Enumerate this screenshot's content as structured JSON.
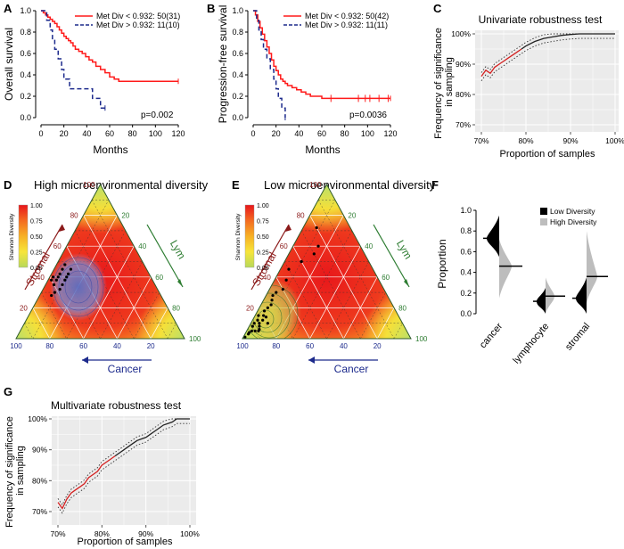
{
  "panels": {
    "A": {
      "letter": "A",
      "xlabel": "Months",
      "ylabel": "Overall survival",
      "pvalue": "p=0.002",
      "legend": [
        "Met Div < 0.932: 50(31)",
        "Met Div > 0.932: 11(10)"
      ],
      "xticks": [
        "0",
        "20",
        "40",
        "60",
        "80",
        "100",
        "120"
      ],
      "yticks": [
        "0.0",
        "0.2",
        "0.4",
        "0.6",
        "0.8",
        "1.0"
      ]
    },
    "B": {
      "letter": "B",
      "xlabel": "Months",
      "ylabel": "Progression-free survival",
      "pvalue": "p=0.0036",
      "legend": [
        "Met Div < 0.932: 50(42)",
        "Met Div > 0.932: 11(11)"
      ],
      "xticks": [
        "0",
        "20",
        "40",
        "60",
        "80",
        "100",
        "120"
      ],
      "yticks": [
        "0.0",
        "0.2",
        "0.4",
        "0.6",
        "0.8",
        "1.0"
      ]
    },
    "C": {
      "letter": "C",
      "title": "Univariate robustness test",
      "xlabel": "Proportion of samples",
      "ylabel": [
        "Frequency of significance",
        "in sampling"
      ],
      "xticks": [
        "70%",
        "80%",
        "90%",
        "100%"
      ],
      "yticks": [
        "70%",
        "80%",
        "90%",
        "100%"
      ]
    },
    "D": {
      "letter": "D",
      "title": "High microenvironmental diversity",
      "legend_title": "Shannon Diversity",
      "legend_ticks": [
        "1.00",
        "0.75",
        "0.50",
        "0.25",
        "0.00"
      ],
      "axis_stromal": "Stromal",
      "axis_lym": "Lym",
      "axis_cancer": "Cancer",
      "left_ticks": [
        "20",
        "40",
        "60",
        "80",
        "100"
      ],
      "right_ticks": [
        "20",
        "40",
        "60",
        "80",
        "100"
      ],
      "bottom_ticks": [
        "100",
        "80",
        "60",
        "40",
        "20"
      ]
    },
    "E": {
      "letter": "E",
      "title": "Low microenvironmental diversity",
      "legend_title": "Shannon Diversity",
      "legend_ticks": [
        "1.00",
        "0.75",
        "0.50",
        "0.25",
        "0.00"
      ],
      "axis_stromal": "Stromal",
      "axis_lym": "Lym",
      "axis_cancer": "Cancer",
      "left_ticks": [
        "20",
        "40",
        "60",
        "80",
        "100"
      ],
      "right_ticks": [
        "20",
        "40",
        "60",
        "80",
        "100"
      ],
      "bottom_ticks": [
        "100",
        "80",
        "60",
        "40",
        "20"
      ]
    },
    "F": {
      "letter": "F",
      "ylabel": "Proportion",
      "legend": [
        "Low  Diversity",
        "High Diversity"
      ],
      "categories": [
        "cancer",
        "lymphocyte",
        "stromal"
      ],
      "yticks": [
        "0.0",
        "0.2",
        "0.4",
        "0.6",
        "0.8",
        "1.0"
      ]
    },
    "G": {
      "letter": "G",
      "title": "Multivariate robustness test",
      "xlabel": "Proportion of samples",
      "ylabel": [
        "Frequency of significance",
        "in sampling"
      ],
      "xticks": [
        "70%",
        "80%",
        "90%",
        "100%"
      ],
      "yticks": [
        "70%",
        "80%",
        "90%",
        "100%"
      ]
    }
  },
  "colors": {
    "red": "#ff1a1a",
    "navy": "#1c2a8c",
    "dark_red": "#8b1a1a",
    "green": "#2e7d32",
    "grey_panel": "#ebebeb",
    "curve": "#222222"
  },
  "chart_data": [
    {
      "type": "line",
      "panel": "A",
      "xlabel": "Months",
      "ylabel": "Overall survival",
      "xlim": [
        0,
        120
      ],
      "ylim": [
        0,
        1
      ],
      "series": [
        {
          "name": "Met Div < 0.932: 50(31)",
          "x": [
            0,
            2,
            4,
            6,
            8,
            10,
            12,
            14,
            16,
            18,
            20,
            22,
            24,
            26,
            28,
            30,
            33,
            36,
            39,
            42,
            45,
            48,
            52,
            56,
            60,
            64,
            68,
            120
          ],
          "y": [
            1.0,
            0.98,
            0.96,
            0.94,
            0.92,
            0.9,
            0.88,
            0.85,
            0.82,
            0.79,
            0.76,
            0.74,
            0.72,
            0.7,
            0.67,
            0.64,
            0.62,
            0.6,
            0.57,
            0.54,
            0.52,
            0.48,
            0.45,
            0.42,
            0.38,
            0.36,
            0.34,
            0.34
          ]
        },
        {
          "name": "Met Div > 0.932: 11(10)",
          "x": [
            0,
            5,
            8,
            10,
            12,
            15,
            18,
            20,
            25,
            35,
            45,
            52,
            56
          ],
          "y": [
            1.0,
            0.91,
            0.82,
            0.73,
            0.64,
            0.55,
            0.45,
            0.36,
            0.27,
            0.27,
            0.18,
            0.09,
            0.09
          ]
        }
      ],
      "annotation": "p=0.002"
    },
    {
      "type": "line",
      "panel": "B",
      "xlabel": "Months",
      "ylabel": "Progression-free survival",
      "xlim": [
        0,
        120
      ],
      "ylim": [
        0,
        1
      ],
      "series": [
        {
          "name": "Met Div < 0.932: 50(42)",
          "x": [
            0,
            2,
            4,
            6,
            8,
            10,
            12,
            14,
            16,
            18,
            20,
            22,
            24,
            26,
            28,
            30,
            34,
            38,
            42,
            46,
            50,
            55,
            60,
            120
          ],
          "y": [
            1.0,
            0.96,
            0.9,
            0.84,
            0.78,
            0.72,
            0.66,
            0.6,
            0.54,
            0.48,
            0.44,
            0.4,
            0.36,
            0.34,
            0.32,
            0.3,
            0.28,
            0.26,
            0.24,
            0.22,
            0.2,
            0.2,
            0.18,
            0.18
          ]
        },
        {
          "name": "Met Div > 0.932: 11(11)",
          "x": [
            0,
            3,
            5,
            7,
            9,
            12,
            15,
            18,
            20,
            22,
            25,
            28
          ],
          "y": [
            1.0,
            0.91,
            0.82,
            0.73,
            0.64,
            0.55,
            0.45,
            0.36,
            0.27,
            0.18,
            0.09,
            0.0
          ]
        }
      ],
      "annotation": "p=0.0036"
    },
    {
      "type": "line",
      "panel": "C",
      "title": "Univariate robustness test",
      "xlabel": "Proportion of samples",
      "ylabel": "Frequency of significance in sampling",
      "xlim": [
        0.7,
        1.0
      ],
      "ylim": [
        0.7,
        1.0
      ],
      "x": [
        0.7,
        0.71,
        0.72,
        0.73,
        0.74,
        0.75,
        0.76,
        0.77,
        0.78,
        0.79,
        0.8,
        0.82,
        0.84,
        0.86,
        0.88,
        0.9,
        0.92,
        0.94,
        0.96,
        0.98,
        1.0
      ],
      "y": [
        0.86,
        0.88,
        0.87,
        0.89,
        0.9,
        0.91,
        0.92,
        0.93,
        0.94,
        0.95,
        0.96,
        0.975,
        0.985,
        0.99,
        0.995,
        0.998,
        1.0,
        1.0,
        1.0,
        1.0,
        1.0
      ]
    },
    {
      "type": "scatter",
      "panel": "D",
      "title": "High microenvironmental diversity",
      "axes": [
        "Cancer",
        "Stromal",
        "Lym"
      ],
      "points": [
        [
          55,
          40,
          5
        ],
        [
          50,
          45,
          5
        ],
        [
          60,
          35,
          5
        ],
        [
          52,
          38,
          10
        ],
        [
          58,
          32,
          10
        ],
        [
          48,
          42,
          10
        ],
        [
          62,
          30,
          8
        ],
        [
          55,
          35,
          10
        ],
        [
          45,
          45,
          10
        ],
        [
          50,
          40,
          10
        ],
        [
          57,
          38,
          5
        ],
        [
          53,
          42,
          5
        ],
        [
          60,
          38,
          2
        ],
        [
          47,
          48,
          5
        ],
        [
          65,
          28,
          7
        ],
        [
          58,
          40,
          2
        ]
      ]
    },
    {
      "type": "scatter",
      "panel": "E",
      "title": "Low microenvironmental diversity",
      "axes": [
        "Cancer",
        "Stromal",
        "Lym"
      ],
      "points": [
        [
          95,
          3,
          2
        ],
        [
          90,
          8,
          2
        ],
        [
          88,
          5,
          7
        ],
        [
          85,
          10,
          5
        ],
        [
          82,
          12,
          6
        ],
        [
          80,
          15,
          5
        ],
        [
          92,
          5,
          3
        ],
        [
          78,
          18,
          4
        ],
        [
          85,
          12,
          3
        ],
        [
          75,
          20,
          5
        ],
        [
          90,
          5,
          5
        ],
        [
          70,
          25,
          5
        ],
        [
          88,
          10,
          2
        ],
        [
          83,
          15,
          2
        ],
        [
          86,
          8,
          6
        ],
        [
          80,
          10,
          10
        ],
        [
          72,
          22,
          6
        ],
        [
          68,
          28,
          4
        ],
        [
          65,
          30,
          5
        ],
        [
          60,
          32,
          8
        ],
        [
          55,
          38,
          7
        ],
        [
          50,
          45,
          5
        ],
        [
          40,
          50,
          10
        ],
        [
          30,
          55,
          15
        ],
        [
          25,
          60,
          15
        ],
        [
          20,
          72,
          8
        ],
        [
          98,
          1,
          1
        ],
        [
          94,
          4,
          2
        ],
        [
          87,
          6,
          7
        ],
        [
          79,
          14,
          7
        ]
      ]
    },
    {
      "type": "violin",
      "panel": "F",
      "ylabel": "Proportion",
      "categories": [
        "cancer",
        "lymphocyte",
        "stromal"
      ],
      "series": [
        {
          "name": "Low  Diversity",
          "medians": [
            0.73,
            0.12,
            0.15
          ],
          "ranges": [
            [
              0.55,
              0.95
            ],
            [
              0.0,
              0.25
            ],
            [
              0.0,
              0.35
            ]
          ]
        },
        {
          "name": "High Diversity",
          "medians": [
            0.46,
            0.17,
            0.36
          ],
          "ranges": [
            [
              0.15,
              0.72
            ],
            [
              0.0,
              0.35
            ],
            [
              0.1,
              0.8
            ]
          ]
        }
      ],
      "ylim": [
        0,
        1
      ]
    },
    {
      "type": "line",
      "panel": "G",
      "title": "Multivariate robustness test",
      "xlabel": "Proportion of samples",
      "ylabel": "Frequency of significance in sampling",
      "xlim": [
        0.7,
        1.0
      ],
      "ylim": [
        0.7,
        1.0
      ],
      "x": [
        0.7,
        0.71,
        0.72,
        0.73,
        0.74,
        0.75,
        0.76,
        0.77,
        0.78,
        0.79,
        0.8,
        0.81,
        0.82,
        0.83,
        0.84,
        0.85,
        0.86,
        0.87,
        0.88,
        0.89,
        0.9,
        0.91,
        0.92,
        0.93,
        0.94,
        0.95,
        0.96,
        0.97,
        0.98,
        1.0
      ],
      "y": [
        0.73,
        0.71,
        0.74,
        0.76,
        0.77,
        0.78,
        0.79,
        0.81,
        0.82,
        0.83,
        0.85,
        0.86,
        0.87,
        0.88,
        0.89,
        0.9,
        0.91,
        0.92,
        0.93,
        0.935,
        0.94,
        0.95,
        0.96,
        0.97,
        0.98,
        0.985,
        0.99,
        1.0,
        1.0,
        1.0
      ]
    }
  ]
}
